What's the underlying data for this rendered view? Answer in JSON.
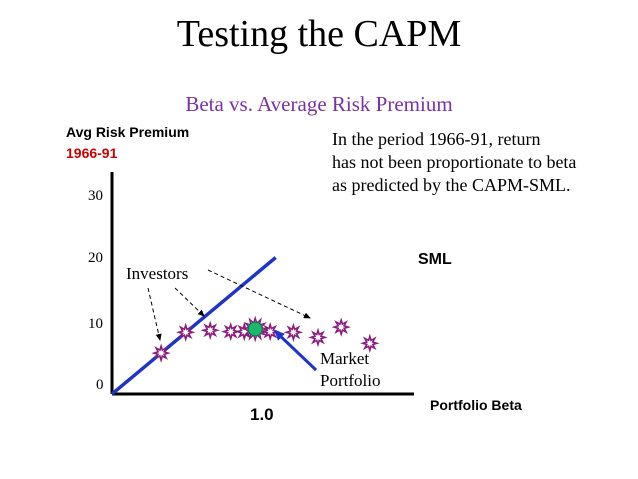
{
  "title": "Testing the CAPM",
  "colors": {
    "subtitle": "#7b2fa8",
    "period_label": "#cc0000",
    "sml_line": "#1f35c9",
    "arrow": "#1f35c9",
    "star": "#8b1c7d",
    "market_portfolio": "#19b86e"
  },
  "chart_data": {
    "type": "scatter",
    "title": "Beta vs. Average Risk Premium",
    "ylabel": "Avg Risk Premium",
    "ylabel_period": "1966-91",
    "xlabel": "Portfolio Beta",
    "x_tick_label": "1.0",
    "y_ticks": [
      "30",
      "20",
      "10",
      "0"
    ],
    "x_range": [
      0,
      2.0
    ],
    "y_range": [
      0,
      30
    ],
    "sml": {
      "label": "SML",
      "points": [
        [
          0,
          0
        ],
        [
          1.2,
          21
        ]
      ]
    },
    "investors": [
      {
        "x": 0.36,
        "y": 6.3
      },
      {
        "x": 0.54,
        "y": 9.5
      },
      {
        "x": 0.72,
        "y": 9.8
      },
      {
        "x": 0.87,
        "y": 9.6
      },
      {
        "x": 0.97,
        "y": 9.6
      },
      {
        "x": 1.16,
        "y": 9.6
      },
      {
        "x": 1.33,
        "y": 9.5
      },
      {
        "x": 1.51,
        "y": 8.7
      },
      {
        "x": 1.68,
        "y": 10.3
      },
      {
        "x": 1.89,
        "y": 7.8
      }
    ],
    "market_portfolio": {
      "x": 1.05,
      "y": 10.0,
      "label_lines": [
        "Market",
        "Portfolio"
      ]
    },
    "investors_label": "Investors",
    "annotation_lines": [
      "In the period 1966-91, return",
      "has not been proportionate to beta",
      "as predicted by the CAPM-SML."
    ]
  }
}
